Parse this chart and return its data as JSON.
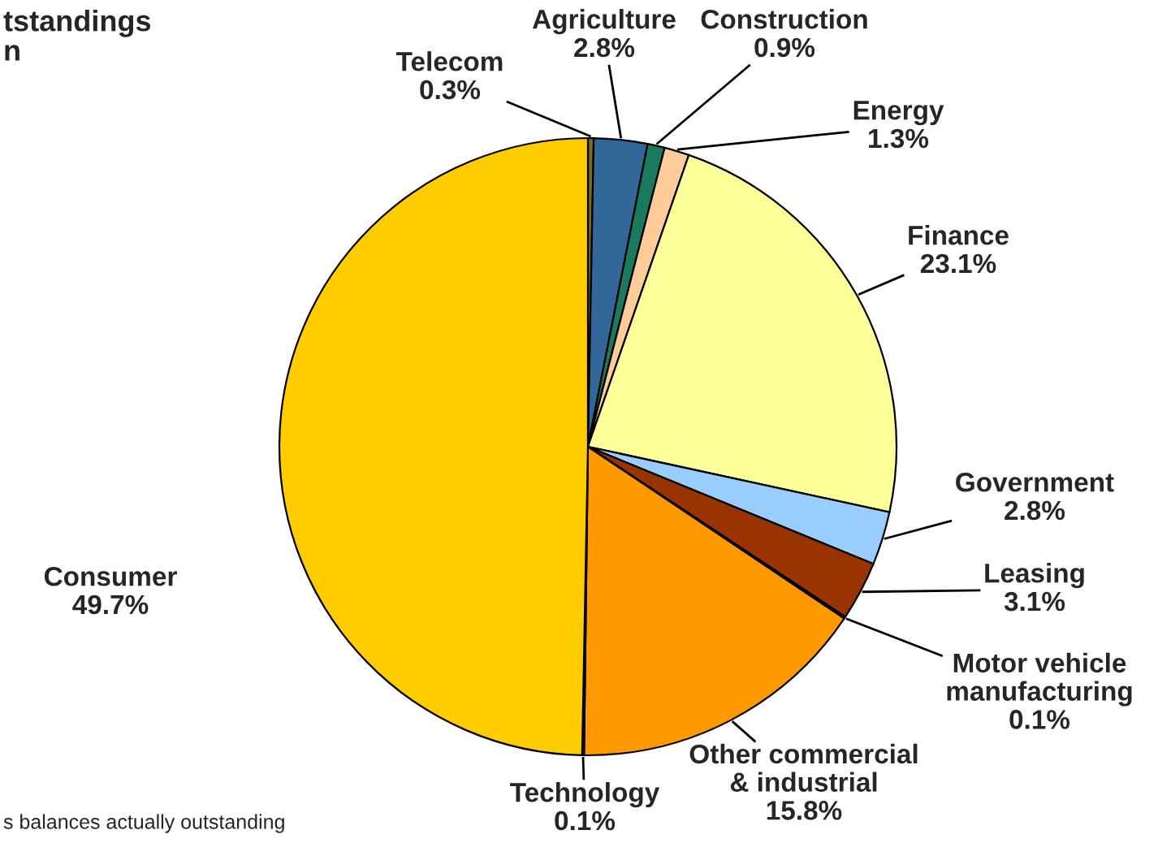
{
  "chart_data": {
    "type": "pie",
    "title": "tstandings\nn",
    "categories": [
      "Telecom",
      "Agriculture",
      "Construction",
      "Energy",
      "Finance",
      "Government",
      "Leasing",
      "Motor vehicle\nmanufacturing",
      "Other commercial\n& industrial",
      "Technology",
      "Consumer"
    ],
    "values": [
      0.3,
      2.8,
      0.9,
      1.3,
      23.1,
      2.8,
      3.1,
      0.1,
      15.8,
      0.1,
      49.7
    ],
    "colors": [
      "#7a6a1a",
      "#336699",
      "#1a7a5e",
      "#ffcc99",
      "#ffff99",
      "#99ccff",
      "#993300",
      "#ccccff",
      "#ff9900",
      "#e6b800",
      "#ffcc00"
    ],
    "value_labels": [
      "0.3%",
      "2.8%",
      "0.9%",
      "1.3%",
      "23.1%",
      "2.8%",
      "3.1%",
      "0.1%",
      "15.8%",
      "0.1%",
      "49.7%"
    ],
    "annotations": [
      "s balances actually outstanding"
    ]
  }
}
